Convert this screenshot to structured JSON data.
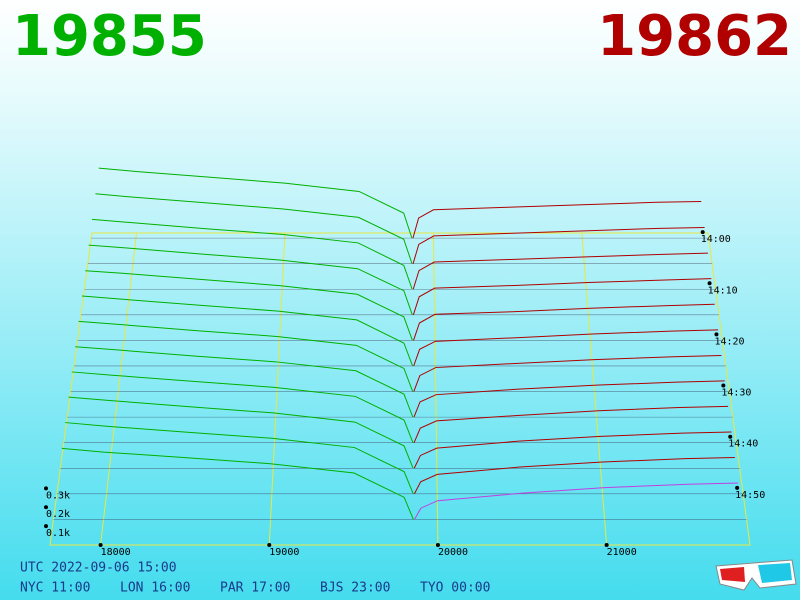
{
  "chart_data": {
    "type": "depth3d",
    "best_bid": 19855,
    "best_ask": 19862,
    "bid_color": "#00b000",
    "ask_color": "#b00000",
    "highlight_color": "#c040e0",
    "grid_color": "#e8e840",
    "xlim": [
      17700,
      21850
    ],
    "xticks": [
      18000,
      19000,
      20000,
      21000
    ],
    "ylim": [
      0,
      450
    ],
    "yticks": [
      {
        "value": 100,
        "label": "0.1k"
      },
      {
        "value": 200,
        "label": "0.2k"
      },
      {
        "value": 300,
        "label": "0.3k"
      }
    ],
    "zlim": [
      -1,
      60
    ],
    "zticks": [
      {
        "value": 0,
        "label": "14:00"
      },
      {
        "value": 10,
        "label": "14:10"
      },
      {
        "value": 20,
        "label": "14:20"
      },
      {
        "value": 30,
        "label": "14:30"
      },
      {
        "value": 40,
        "label": "14:40"
      },
      {
        "value": 50,
        "label": "14:50"
      }
    ],
    "bid_prices": [
      17750,
      18000,
      18500,
      19000,
      19500,
      19800,
      19855
    ],
    "ask_prices": [
      19862,
      19900,
      20000,
      20500,
      21000,
      21500,
      21800
    ],
    "snapshots": [
      {
        "time": 0,
        "bids": [
          420,
          400,
          365,
          330,
          280,
          150,
          0
        ],
        "asks": [
          0,
          120,
          170,
          185,
          200,
          215,
          220
        ]
      },
      {
        "time": 5,
        "bids": [
          415,
          395,
          360,
          325,
          275,
          145,
          0
        ],
        "asks": [
          0,
          115,
          165,
          180,
          195,
          210,
          215
        ]
      },
      {
        "time": 10,
        "bids": [
          410,
          392,
          355,
          322,
          272,
          140,
          0
        ],
        "asks": [
          0,
          110,
          160,
          175,
          190,
          205,
          212
        ]
      },
      {
        "time": 15,
        "bids": [
          405,
          388,
          352,
          318,
          268,
          140,
          0
        ],
        "asks": [
          0,
          105,
          155,
          170,
          188,
          202,
          210
        ]
      },
      {
        "time": 20,
        "bids": [
          400,
          385,
          350,
          315,
          265,
          135,
          0
        ],
        "asks": [
          0,
          100,
          150,
          165,
          185,
          200,
          208
        ]
      },
      {
        "time": 25,
        "bids": [
          398,
          380,
          345,
          312,
          262,
          130,
          0
        ],
        "asks": [
          0,
          95,
          140,
          160,
          182,
          198,
          205
        ]
      },
      {
        "time": 30,
        "bids": [
          395,
          378,
          342,
          310,
          260,
          130,
          0
        ],
        "asks": [
          0,
          90,
          135,
          158,
          180,
          196,
          203
        ]
      },
      {
        "time": 35,
        "bids": [
          392,
          375,
          340,
          308,
          258,
          128,
          0
        ],
        "asks": [
          0,
          85,
          125,
          155,
          178,
          195,
          202
        ]
      },
      {
        "time": 40,
        "bids": [
          390,
          372,
          338,
          305,
          255,
          125,
          0
        ],
        "asks": [
          0,
          80,
          120,
          150,
          176,
          194,
          200
        ]
      },
      {
        "time": 45,
        "bids": [
          388,
          370,
          335,
          302,
          252,
          122,
          0
        ],
        "asks": [
          0,
          70,
          110,
          148,
          174,
          192,
          198
        ]
      },
      {
        "time": 50,
        "bids": [
          385,
          365,
          332,
          300,
          250,
          120,
          0
        ],
        "asks": [
          0,
          65,
          105,
          145,
          172,
          190,
          196
        ]
      },
      {
        "time": 55,
        "bids": [
          380,
          360,
          330,
          298,
          248,
          118,
          0
        ],
        "asks": [
          0,
          60,
          100,
          140,
          170,
          188,
          195
        ]
      }
    ],
    "footer": {
      "utc": "UTC 2022-09-06 15:00",
      "cities": [
        "NYC 11:00",
        "LON 16:00",
        "PAR 17:00",
        "BJS 23:00",
        "TYO 00:00"
      ]
    }
  }
}
